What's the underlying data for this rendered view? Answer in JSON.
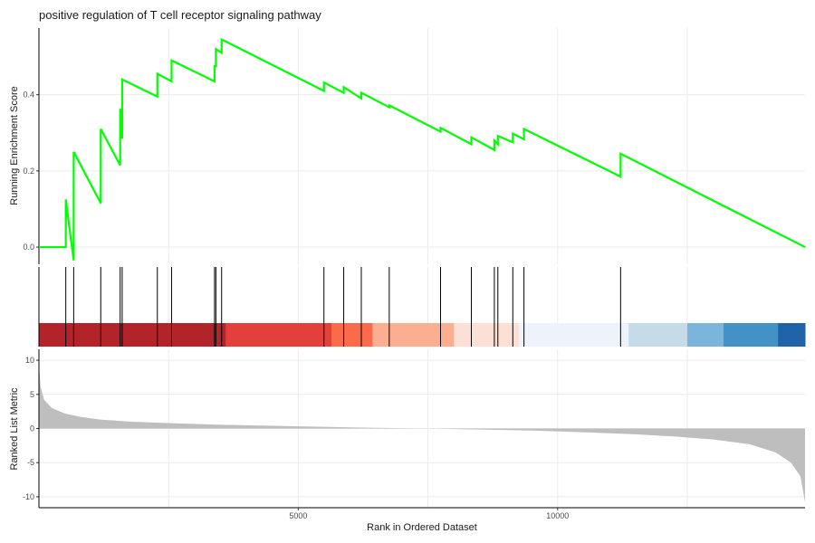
{
  "chart_data": {
    "type": "line",
    "title": "positive regulation of T cell receptor signaling pathway",
    "xlabel": "Rank in Ordered Dataset",
    "xlim": [
      0,
      14770
    ],
    "x_ticks": [
      {
        "value": 5000,
        "label": "5000"
      },
      {
        "value": 10000,
        "label": "10000"
      }
    ],
    "running_score": {
      "ylabel": "Running Enrichment Score",
      "ylim": [
        -0.045,
        0.575
      ],
      "y_ticks": [
        {
          "value": 0.0,
          "label": "0.0"
        },
        {
          "value": 0.2,
          "label": "0.2"
        },
        {
          "value": 0.4,
          "label": "0.4"
        }
      ],
      "color": "#00ff00",
      "hit_ranks": [
        518,
        670,
        1192,
        1566,
        1605,
        2283,
        2557,
        3385,
        3412,
        3522,
        5495,
        5876,
        6215,
        6754,
        7743,
        8337,
        8780,
        8848,
        9136,
        9351,
        11214
      ],
      "es_before_hit": [
        0.0,
        -0.035,
        0.115,
        0.215,
        0.285,
        0.395,
        0.435,
        0.435,
        0.475,
        0.51,
        0.41,
        0.405,
        0.39,
        0.367,
        0.303,
        0.27,
        0.255,
        0.27,
        0.275,
        0.283,
        0.185
      ],
      "es_after_hit": [
        0.125,
        0.25,
        0.31,
        0.363,
        0.44,
        0.455,
        0.49,
        0.475,
        0.52,
        0.545,
        0.432,
        0.42,
        0.405,
        0.372,
        0.313,
        0.288,
        0.28,
        0.292,
        0.298,
        0.31,
        0.245
      ],
      "es_end": 0.0
    },
    "ranked_metric": {
      "ylabel": "Ranked List Metric",
      "ylim": [
        -11.6,
        11.6
      ],
      "y_ticks": [
        {
          "value": 10,
          "label": "10"
        },
        {
          "value": 5,
          "label": "5"
        },
        {
          "value": 0,
          "label": "0"
        },
        {
          "value": -5,
          "label": "-5"
        },
        {
          "value": -10,
          "label": "-10"
        }
      ],
      "fill_color": "#bebebe",
      "profile": [
        [
          0,
          9.5
        ],
        [
          30,
          6.2
        ],
        [
          100,
          4.2
        ],
        [
          250,
          3.0
        ],
        [
          500,
          2.2
        ],
        [
          800,
          1.7
        ],
        [
          1200,
          1.3
        ],
        [
          1800,
          1.0
        ],
        [
          2500,
          0.8
        ],
        [
          3500,
          0.55
        ],
        [
          4500,
          0.4
        ],
        [
          5500,
          0.25
        ],
        [
          6500,
          0.1
        ],
        [
          7500,
          0.0
        ],
        [
          8500,
          -0.15
        ],
        [
          9500,
          -0.3
        ],
        [
          10500,
          -0.55
        ],
        [
          11500,
          -0.85
        ],
        [
          12300,
          -1.2
        ],
        [
          13000,
          -1.6
        ],
        [
          13700,
          -2.3
        ],
        [
          14200,
          -3.5
        ],
        [
          14500,
          -5.0
        ],
        [
          14680,
          -7.0
        ],
        [
          14770,
          -10.8
        ]
      ]
    },
    "color_bar": [
      {
        "from": 0,
        "to": 3600,
        "color": "#b2232a"
      },
      {
        "from": 3600,
        "to": 5640,
        "color": "#e3403b"
      },
      {
        "from": 5640,
        "to": 6430,
        "color": "#fb6a4a"
      },
      {
        "from": 6430,
        "to": 8000,
        "color": "#fcae91"
      },
      {
        "from": 8000,
        "to": 9250,
        "color": "#fde0d5"
      },
      {
        "from": 9250,
        "to": 11370,
        "color": "#eef3fb"
      },
      {
        "from": 11370,
        "to": 12500,
        "color": "#c6dbe8"
      },
      {
        "from": 12500,
        "to": 13200,
        "color": "#7cb5db"
      },
      {
        "from": 13200,
        "to": 14250,
        "color": "#4292c6"
      },
      {
        "from": 14250,
        "to": 14770,
        "color": "#2163a8"
      }
    ]
  }
}
